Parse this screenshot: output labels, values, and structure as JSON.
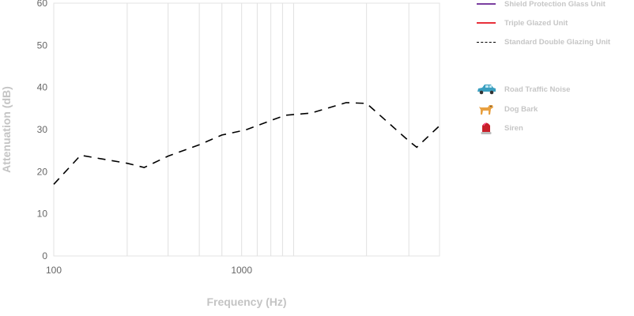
{
  "chart_data": {
    "type": "line",
    "xlabel": "Frequency (Hz)",
    "ylabel": "Attenuation (dB)",
    "x_scale": "log",
    "xlim": [
      100,
      11300
    ],
    "ylim": [
      0,
      60
    ],
    "x_ticks": [
      {
        "value": 100,
        "label": "100"
      },
      {
        "value": 1000,
        "label": "1000"
      }
    ],
    "y_ticks": [
      0,
      10,
      20,
      30,
      40,
      50,
      60
    ],
    "x_gridlines": [
      246,
      406,
      595,
      785,
      1000,
      1210,
      1430,
      1650,
      1890,
      4620,
      7760
    ],
    "grid": true,
    "series": [
      {
        "name": "Standard Double Glazing Unit",
        "color": "#000000",
        "style": "dashed",
        "x": [
          100,
          139,
          246,
          303,
          406,
          595,
          785,
          1050,
          1440,
          1710,
          2335,
          3600,
          4620,
          7850,
          8550,
          11300
        ],
        "y": [
          17,
          23.9,
          22,
          21,
          23.7,
          26.4,
          28.7,
          29.9,
          32.2,
          33.4,
          33.9,
          36.4,
          36.2,
          27.1,
          25.8,
          30.9
        ]
      }
    ],
    "legend": {
      "placement": "right",
      "entries": [
        {
          "label": "Shield Protection Glass Unit",
          "color": "#7b3fa0",
          "style": "solid"
        },
        {
          "label": "Triple Glazed Unit",
          "color": "#e8303a",
          "style": "solid"
        },
        {
          "label": "Standard Double Glazing Unit",
          "color": "#000000",
          "style": "dashed"
        }
      ],
      "noise_sources": [
        {
          "label": "Road Traffic Noise",
          "icon": "car-icon"
        },
        {
          "label": "Dog Bark",
          "icon": "dog-icon"
        },
        {
          "label": "Siren",
          "icon": "siren-icon"
        }
      ]
    }
  }
}
